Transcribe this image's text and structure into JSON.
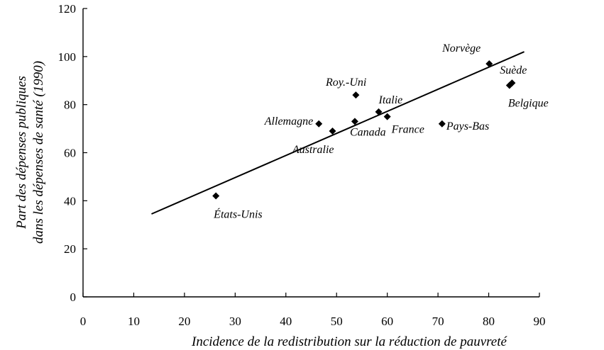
{
  "chart_data": {
    "type": "scatter",
    "title": "",
    "xlabel": "Incidence de la redistribution sur la réduction de pauvreté",
    "ylabel_lines": [
      "Part des dépenses publiques",
      "dans les dépenses de santé (1990)"
    ],
    "xlim": [
      0,
      90
    ],
    "ylim": [
      0,
      120
    ],
    "xticks": [
      "0",
      "10",
      "20",
      "30",
      "40",
      "50",
      "60",
      "70",
      "80",
      "90"
    ],
    "yticks": [
      "0",
      "20",
      "40",
      "60",
      "80",
      "100",
      "120"
    ],
    "grid": false,
    "legend": "none",
    "points": [
      {
        "label": "États-Unis",
        "x": 26.2,
        "y": 42
      },
      {
        "label": "Allemagne",
        "x": 46.5,
        "y": 72
      },
      {
        "label": "Australie",
        "x": 49.2,
        "y": 69
      },
      {
        "label": "Canada",
        "x": 53.6,
        "y": 73
      },
      {
        "label": "Roy.-Uni",
        "x": 53.8,
        "y": 84
      },
      {
        "label": "Italie",
        "x": 58.3,
        "y": 77
      },
      {
        "label": "France",
        "x": 60,
        "y": 75
      },
      {
        "label": "Pays-Bas",
        "x": 70.8,
        "y": 72
      },
      {
        "label": "Norvège",
        "x": 80.1,
        "y": 97
      },
      {
        "label": "Suède",
        "x": 84.6,
        "y": 89
      },
      {
        "label": "Belgique",
        "x": 84.1,
        "y": 88
      }
    ],
    "trendline": {
      "x": [
        13.5,
        87
      ],
      "y": [
        34.5,
        102
      ]
    }
  }
}
